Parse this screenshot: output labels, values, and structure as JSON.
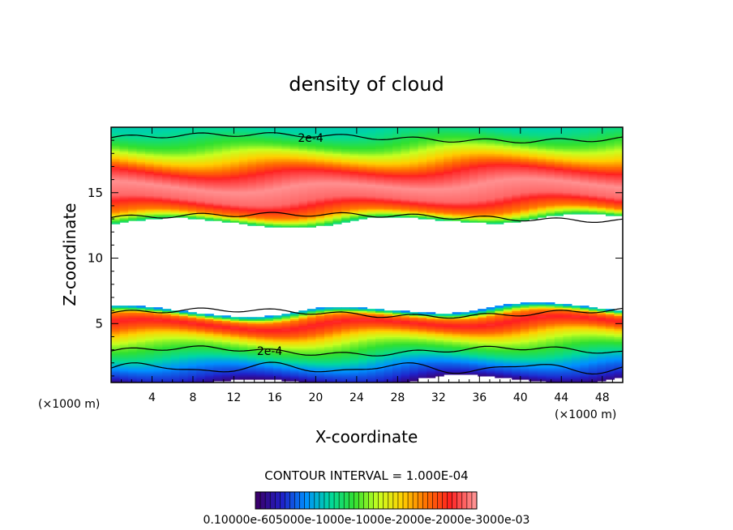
{
  "chart_data": {
    "type": "heatmap",
    "title": "density of cloud",
    "xlabel": "X-coordinate",
    "ylabel": "Z-coordinate",
    "x_unit_left": "(×1000 m)",
    "x_unit_right": "(×1000 m)",
    "xlim": [
      0,
      50
    ],
    "ylim": [
      0.5,
      20
    ],
    "x_ticks": [
      "4",
      "8",
      "12",
      "16",
      "20",
      "24",
      "28",
      "32",
      "36",
      "40",
      "44",
      "48"
    ],
    "x_tick_values": [
      4,
      8,
      12,
      16,
      20,
      24,
      28,
      32,
      36,
      40,
      44,
      48
    ],
    "y_ticks": [
      "5",
      "10",
      "15"
    ],
    "y_tick_values": [
      5,
      10,
      15
    ],
    "contour_labels": [
      {
        "text": "2e-4",
        "x": 19.5,
        "z": 19.2
      },
      {
        "text": "2e-4",
        "x": 15.5,
        "z": 2.9
      }
    ],
    "contour_interval": "CONTOUR INTERVAL = 1.000E-04",
    "colorbar_labels": "0.10000e-605000e-1000e-1000e-2000e-2000e-3000e-03",
    "colormap": [
      "#3a006e",
      "#2020c8",
      "#0090ff",
      "#00d8a0",
      "#30e030",
      "#c8ff20",
      "#ffd000",
      "#ff7000",
      "#ff2020",
      "#ff9090"
    ],
    "profile": {
      "z": [
        0.5,
        1.0,
        1.5,
        2.0,
        2.5,
        3.0,
        3.5,
        4.0,
        4.5,
        5.0,
        5.5,
        6.0,
        12.5,
        13.5,
        14.5,
        15.5,
        16.5,
        17.5,
        18.5,
        19.5,
        20.0
      ],
      "density": [
        0.0,
        6e-05,
        9e-05,
        0.00013,
        0.00018,
        0.00022,
        0.00026,
        0.00032,
        0.0004,
        0.00045,
        0.00038,
        0.0001,
        0.0001,
        0.00038,
        0.00048,
        0.0005,
        0.00045,
        0.00034,
        0.00024,
        0.00018,
        0.00016
      ]
    }
  }
}
